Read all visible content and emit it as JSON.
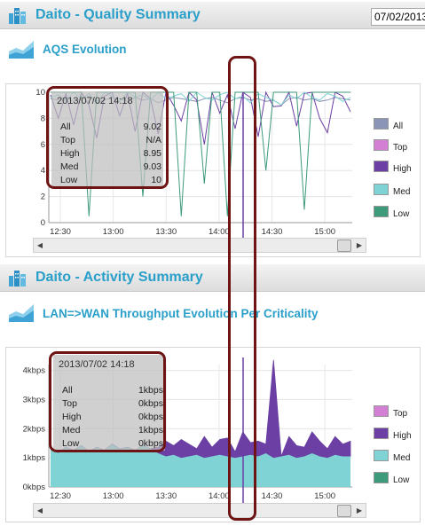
{
  "colors": {
    "accent": "#2a9fc9",
    "all": "#8a94b6",
    "top": "#d27fd4",
    "high": "#6b3fa3",
    "med": "#7fd3d4",
    "low": "#3d9a7a",
    "highlight_ring": "#6e1414"
  },
  "quality_section": {
    "title": "Daito - Quality Summary",
    "date_value": "07/02/2013",
    "icon": "building-chart-icon"
  },
  "aqs_chart": {
    "title": "AQS Evolution",
    "icon": "area-chart-icon",
    "legend": [
      "All",
      "Top",
      "High",
      "Med",
      "Low"
    ],
    "tooltip": {
      "time": "2013/07/02 14:18",
      "rows": [
        {
          "k": "All",
          "v": "9.02"
        },
        {
          "k": "Top",
          "v": "N/A"
        },
        {
          "k": "High",
          "v": "8.95"
        },
        {
          "k": "Med",
          "v": "9.03"
        },
        {
          "k": "Low",
          "v": "10"
        }
      ]
    }
  },
  "activity_section": {
    "title": "Daito - Activity Summary",
    "icon": "building-chart-icon"
  },
  "throughput_chart": {
    "title": "LAN=>WAN Throughput Evolution Per Criticality",
    "icon": "area-chart-icon",
    "legend": [
      "Top",
      "High",
      "Med",
      "Low"
    ],
    "tooltip": {
      "time": "2013/07/02 14:18",
      "rows": [
        {
          "k": "All",
          "v": "1kbps"
        },
        {
          "k": "Top",
          "v": "0kbps"
        },
        {
          "k": "High",
          "v": "0kbps"
        },
        {
          "k": "Med",
          "v": "1kbps"
        },
        {
          "k": "Low",
          "v": "0kbps"
        }
      ]
    }
  },
  "chart_data": [
    {
      "type": "line",
      "x_ticks": [
        "12:30",
        "13:00",
        "13:30",
        "14:00",
        "14:30",
        "15:00"
      ],
      "y_ticks": [
        "0",
        "2",
        "4",
        "6",
        "8",
        "10"
      ],
      "ylim": [
        0,
        10
      ],
      "grid": true,
      "legend_placement": "right",
      "series": [
        {
          "name": "All",
          "values": [
            9.5,
            9.4,
            9.6,
            9.3,
            9.5,
            9.7,
            9.2,
            9.4,
            9.6,
            9.5,
            9.3,
            9.6,
            9.4,
            9.5,
            9.2,
            9.4,
            9.6,
            9.5,
            9.4,
            9.3,
            9.5,
            9.6,
            9.4,
            9.2,
            9.5,
            9.6,
            9.4,
            9.5,
            9.3,
            9.4,
            9.02,
            9.5,
            9.6,
            9.4,
            9.5,
            9.3,
            9.4,
            9.6,
            9.5,
            9.4
          ]
        },
        {
          "name": "High",
          "values": [
            9.8,
            8.0,
            9.9,
            7.5,
            10,
            9.0,
            6.5,
            9.7,
            10,
            8.2,
            9.9,
            7.0,
            10,
            9.5,
            6.8,
            10,
            9.0,
            7.8,
            10,
            9.4,
            6.0,
            10,
            8.4,
            9.8,
            7.2,
            10,
            9.6,
            6.6,
            10,
            8.9,
            8.95,
            10,
            7.4,
            9.9,
            10,
            8.0,
            6.9,
            10,
            9.7,
            8.5
          ]
        },
        {
          "name": "Med",
          "values": [
            9.6,
            9.8,
            9.4,
            10,
            9.5,
            9.9,
            9.2,
            10,
            9.7,
            9.3,
            10,
            9.6,
            9.8,
            9.4,
            10,
            9.5,
            9.7,
            9.9,
            9.3,
            10,
            9.6,
            9.4,
            9.8,
            10,
            9.5,
            9.7,
            9.2,
            9.9,
            9.6,
            9.4,
            9.03,
            9.8,
            9.5,
            10,
            9.6,
            9.4,
            9.9,
            9.7,
            9.3,
            9.6
          ]
        },
        {
          "name": "Low",
          "values": [
            10,
            10,
            10,
            10,
            10,
            0.5,
            10,
            10,
            10,
            10,
            10,
            10,
            2.0,
            10,
            10,
            10,
            10,
            0.5,
            10,
            10,
            3.0,
            10,
            10,
            0.5,
            10,
            10,
            10,
            10,
            4.0,
            10,
            10,
            10,
            10,
            1.0,
            10,
            10,
            10,
            10,
            10,
            10
          ]
        }
      ]
    },
    {
      "type": "area",
      "x_ticks": [
        "12:30",
        "13:00",
        "13:30",
        "14:00",
        "14:30",
        "15:00"
      ],
      "y_ticks": [
        "0kbps",
        "1kbps",
        "2kbps",
        "3kbps",
        "4kbps"
      ],
      "ylim": [
        0,
        4.2
      ],
      "grid": true,
      "legend_placement": "right",
      "series": [
        {
          "name": "Med",
          "values": [
            1.25,
            1.1,
            1.3,
            1.2,
            1.35,
            1.15,
            1.3,
            1.2,
            1.4,
            1.25,
            1.3,
            1.2,
            1.35,
            1.25,
            1.1,
            1.0,
            1.05,
            0.95,
            1.0,
            1.05,
            0.95,
            1.0,
            1.05,
            1.0,
            0.95,
            1.0,
            1.05,
            1.0,
            1.1,
            0.95,
            1.0,
            1.05,
            0.95,
            1.0,
            1.1,
            1.0,
            0.95,
            1.05,
            1.0,
            1.0
          ]
        },
        {
          "name": "High",
          "values": [
            0,
            0,
            0,
            0,
            0,
            0,
            0,
            0,
            0,
            0,
            0,
            0,
            0,
            0,
            0.2,
            0.5,
            0.3,
            0.6,
            0.4,
            0.2,
            0.7,
            0.3,
            0.5,
            0.6,
            0.2,
            0.8,
            0.4,
            0.5,
            0.3,
            3.2,
            0.0,
            0.6,
            0.4,
            0.3,
            0.7,
            0.5,
            0.3,
            0.6,
            0.4,
            0.5
          ]
        }
      ]
    }
  ]
}
